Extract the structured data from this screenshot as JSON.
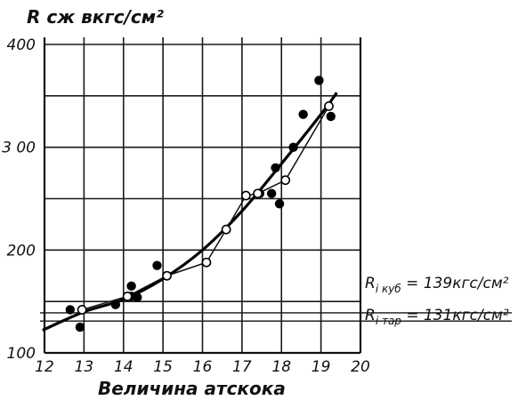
{
  "chart_data": {
    "type": "scatter",
    "ylabel": "R сж вкгс/см²",
    "xlabel": "Величина атскока",
    "xlim": [
      12,
      20
    ],
    "ylim": [
      100,
      400
    ],
    "x_ticks": [
      "12",
      "13",
      "14",
      "15",
      "16",
      "17",
      "18",
      "19",
      "20"
    ],
    "y_ticks": [
      "400",
      "3 00",
      "200",
      "100"
    ],
    "y_tick_values": [
      400,
      300,
      200,
      100
    ],
    "grid": true,
    "series": [
      {
        "marker": "filled",
        "points": [
          [
            12.65,
            142
          ],
          [
            12.9,
            125
          ],
          [
            13.8,
            147
          ],
          [
            14.2,
            165
          ],
          [
            14.2,
            155
          ],
          [
            14.35,
            154
          ],
          [
            14.85,
            185
          ],
          [
            17.45,
            255
          ],
          [
            17.75,
            255
          ],
          [
            17.85,
            280
          ],
          [
            17.95,
            245
          ],
          [
            18.3,
            300
          ],
          [
            18.55,
            332
          ],
          [
            18.95,
            365
          ],
          [
            19.25,
            330
          ]
        ]
      },
      {
        "marker": "open",
        "points": [
          [
            12.95,
            142
          ],
          [
            14.1,
            155
          ],
          [
            15.1,
            175
          ],
          [
            16.1,
            188
          ],
          [
            16.6,
            220
          ],
          [
            17.1,
            253
          ],
          [
            17.4,
            255
          ],
          [
            18.1,
            268
          ],
          [
            19.2,
            340
          ]
        ]
      }
    ],
    "fit_curve": [
      [
        11.95,
        122
      ],
      [
        13,
        140
      ],
      [
        14,
        152
      ],
      [
        15,
        172
      ],
      [
        16,
        200
      ],
      [
        17,
        238
      ],
      [
        18,
        284
      ],
      [
        19,
        332
      ],
      [
        19.4,
        353
      ]
    ],
    "reference_lines": [
      {
        "label": "R",
        "sub": "i куб",
        "text": "= 139кгс/см²",
        "value": 139
      },
      {
        "label": "R",
        "sub": "i тар",
        "text": "= 131кгс/см²",
        "value": 131
      }
    ]
  }
}
